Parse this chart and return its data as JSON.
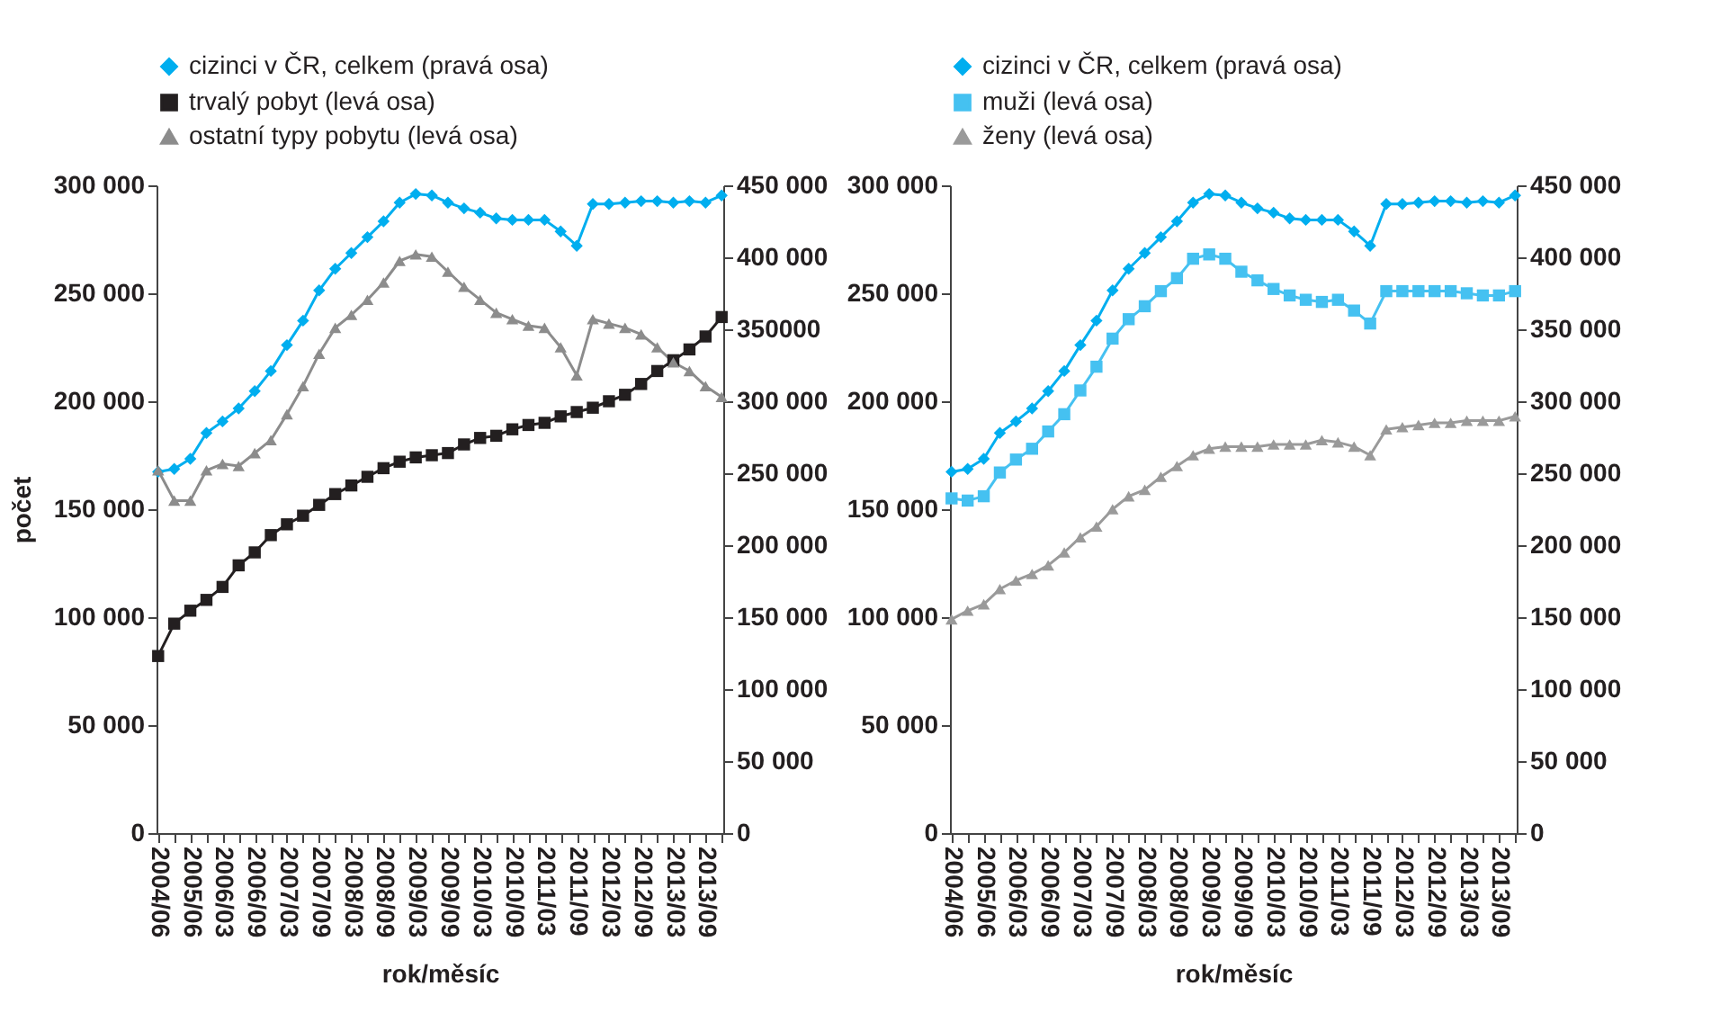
{
  "chart_data": [
    {
      "type": "line",
      "xlabel": "rok/měsíc",
      "ylabel": "počet",
      "legend": "top",
      "categories": [
        "2004/06",
        null,
        "2005/06",
        null,
        "2006/03",
        null,
        "2006/09",
        null,
        "2007/03",
        null,
        "2007/09",
        null,
        "2008/03",
        null,
        "2008/09",
        null,
        "2009/03",
        null,
        "2009/09",
        null,
        "2010/03",
        null,
        "2010/09",
        null,
        "2011/03",
        null,
        "2011/09",
        null,
        "2012/03",
        null,
        "2012/09",
        null,
        "2013/03",
        null,
        "2013/09",
        null
      ],
      "ylim": [
        0,
        300000
      ],
      "yticks": [
        {
          "value": 0,
          "label": "0"
        },
        {
          "value": 50000,
          "label": "50 000"
        },
        {
          "value": 100000,
          "label": "100 000"
        },
        {
          "value": 150000,
          "label": "150 000"
        },
        {
          "value": 200000,
          "label": "200 000"
        },
        {
          "value": 250000,
          "label": "250 000"
        },
        {
          "value": 300000,
          "label": "300 000"
        }
      ],
      "y2lim": [
        0,
        450000
      ],
      "y2ticks": [
        {
          "value": 0,
          "label": "0"
        },
        {
          "value": 50000,
          "label": "50 000"
        },
        {
          "value": 100000,
          "label": "100 000"
        },
        {
          "value": 150000,
          "label": "150 000"
        },
        {
          "value": 200000,
          "label": "200 000"
        },
        {
          "value": 250000,
          "label": "250 000"
        },
        {
          "value": 300000,
          "label": "300 000"
        },
        {
          "value": 350000,
          "label": "350000"
        },
        {
          "value": 400000,
          "label": "400 000"
        },
        {
          "value": 450000,
          "label": "450 000"
        }
      ],
      "series": [
        {
          "name": "cizinci v ČR, celkem (pravá osa)",
          "color": "#00aeef",
          "axis": "y2",
          "marker": "diamond",
          "values": [
            251000,
            253000,
            260000,
            278000,
            286000,
            295000,
            307000,
            321000,
            339000,
            356000,
            377000,
            392000,
            403000,
            414000,
            425000,
            438000,
            444000,
            443000,
            438000,
            434000,
            431000,
            427000,
            426000,
            426000,
            426000,
            418000,
            408000,
            437000,
            437000,
            438000,
            439000,
            439000,
            438000,
            439000,
            438000,
            443000
          ]
        },
        {
          "name": "trvalý pobyt (levá osa)",
          "color": "#231f20",
          "marker": "square",
          "values": [
            82000,
            97000,
            103000,
            108000,
            114000,
            124000,
            130000,
            138000,
            143000,
            147000,
            152000,
            157000,
            161000,
            165000,
            169000,
            172000,
            174000,
            175000,
            176000,
            180000,
            183000,
            184000,
            187000,
            189000,
            190000,
            193000,
            195000,
            197000,
            200000,
            203000,
            208000,
            214000,
            219000,
            224000,
            230000,
            239000
          ]
        },
        {
          "name": "ostatní typy pobytu (levá osa)",
          "color": "#8c8c8c",
          "marker": "triangle",
          "values": [
            168000,
            154000,
            154000,
            168000,
            171000,
            170000,
            176000,
            182000,
            194000,
            207000,
            222000,
            234000,
            240000,
            247000,
            255000,
            265000,
            268000,
            267000,
            260000,
            253000,
            247000,
            241000,
            238000,
            235000,
            234000,
            225000,
            212000,
            238000,
            236000,
            234000,
            231000,
            225000,
            218000,
            214000,
            207000,
            202000
          ]
        }
      ]
    },
    {
      "type": "line",
      "xlabel": "rok/měsíc",
      "legend": "top",
      "categories": [
        "2004/06",
        null,
        "2005/06",
        null,
        "2006/03",
        null,
        "2006/09",
        null,
        "2007/03",
        null,
        "2007/09",
        null,
        "2008/03",
        null,
        "2008/09",
        null,
        "2009/03",
        null,
        "2009/09",
        null,
        "2010/03",
        null,
        "2010/09",
        null,
        "2011/03",
        null,
        "2011/09",
        null,
        "2012/03",
        null,
        "2012/09",
        null,
        "2013/03",
        null,
        "2013/09",
        null
      ],
      "ylim": [
        0,
        300000
      ],
      "yticks": [
        {
          "value": 0,
          "label": "0"
        },
        {
          "value": 50000,
          "label": "50 000"
        },
        {
          "value": 100000,
          "label": "100 000"
        },
        {
          "value": 150000,
          "label": "150 000"
        },
        {
          "value": 200000,
          "label": "200 000"
        },
        {
          "value": 250000,
          "label": "250 000"
        },
        {
          "value": 300000,
          "label": "300 000"
        }
      ],
      "y2lim": [
        0,
        450000
      ],
      "y2ticks": [
        {
          "value": 0,
          "label": "0"
        },
        {
          "value": 50000,
          "label": "50 000"
        },
        {
          "value": 100000,
          "label": "100 000"
        },
        {
          "value": 150000,
          "label": "150 000"
        },
        {
          "value": 200000,
          "label": "200 000"
        },
        {
          "value": 250000,
          "label": "250 000"
        },
        {
          "value": 300000,
          "label": "300 000"
        },
        {
          "value": 350000,
          "label": "350 000"
        },
        {
          "value": 400000,
          "label": "400 000"
        },
        {
          "value": 450000,
          "label": "450 000"
        }
      ],
      "series": [
        {
          "name": "cizinci v ČR, celkem (pravá osa)",
          "color": "#00aeef",
          "axis": "y2",
          "marker": "diamond",
          "values": [
            251000,
            253000,
            260000,
            278000,
            286000,
            295000,
            307000,
            321000,
            339000,
            356000,
            377000,
            392000,
            403000,
            414000,
            425000,
            438000,
            444000,
            443000,
            438000,
            434000,
            431000,
            427000,
            426000,
            426000,
            426000,
            418000,
            408000,
            437000,
            437000,
            438000,
            439000,
            439000,
            438000,
            439000,
            438000,
            443000
          ]
        },
        {
          "name": "muži (levá osa)",
          "color": "#45c1f1",
          "marker": "square",
          "values": [
            155000,
            154000,
            156000,
            167000,
            173000,
            178000,
            186000,
            194000,
            205000,
            216000,
            229000,
            238000,
            244000,
            251000,
            257000,
            266000,
            268000,
            266000,
            260000,
            256000,
            252000,
            249000,
            247000,
            246000,
            247000,
            242000,
            236000,
            251000,
            251000,
            251000,
            251000,
            251000,
            250000,
            249000,
            249000,
            251000
          ]
        },
        {
          "name": "ženy (levá osa)",
          "color": "#9a9a9a",
          "marker": "triangle",
          "values": [
            99000,
            103000,
            106000,
            113000,
            117000,
            120000,
            124000,
            130000,
            137000,
            142000,
            150000,
            156000,
            159000,
            165000,
            170000,
            175000,
            178000,
            179000,
            179000,
            179000,
            180000,
            180000,
            180000,
            182000,
            181000,
            179000,
            175000,
            187000,
            188000,
            189000,
            190000,
            190000,
            191000,
            191000,
            191000,
            193000
          ]
        }
      ]
    }
  ]
}
